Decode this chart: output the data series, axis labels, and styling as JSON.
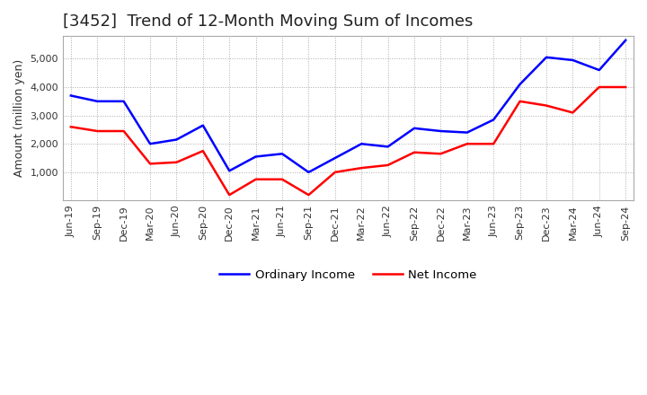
{
  "title": "[3452]  Trend of 12-Month Moving Sum of Incomes",
  "ylabel": "Amount (million yen)",
  "x_labels": [
    "Jun-19",
    "Sep-19",
    "Dec-19",
    "Mar-20",
    "Jun-20",
    "Sep-20",
    "Dec-20",
    "Mar-21",
    "Jun-21",
    "Sep-21",
    "Dec-21",
    "Mar-22",
    "Jun-22",
    "Sep-22",
    "Dec-22",
    "Mar-23",
    "Jun-23",
    "Sep-23",
    "Dec-23",
    "Mar-24",
    "Jun-24",
    "Sep-24"
  ],
  "ordinary_income": [
    3700,
    3500,
    3500,
    2000,
    2150,
    2650,
    1050,
    1550,
    1650,
    1000,
    1500,
    2000,
    1900,
    2550,
    2450,
    2400,
    2850,
    4100,
    5050,
    4950,
    4600,
    5650
  ],
  "net_income": [
    2600,
    2450,
    2450,
    1300,
    1350,
    1750,
    200,
    750,
    750,
    200,
    1000,
    1150,
    1250,
    1700,
    1650,
    2000,
    2000,
    3500,
    3350,
    3100,
    4000,
    4000
  ],
  "ordinary_income_color": "#0000ff",
  "net_income_color": "#ff0000",
  "grid_color": "#888888",
  "background_color": "#ffffff",
  "plot_bg_color": "#ffffff",
  "ylim": [
    0,
    5800
  ],
  "yticks": [
    1000,
    2000,
    3000,
    4000,
    5000
  ],
  "legend_labels": [
    "Ordinary Income",
    "Net Income"
  ],
  "title_fontsize": 13,
  "axis_fontsize": 9,
  "tick_fontsize": 8,
  "line_width": 1.8
}
